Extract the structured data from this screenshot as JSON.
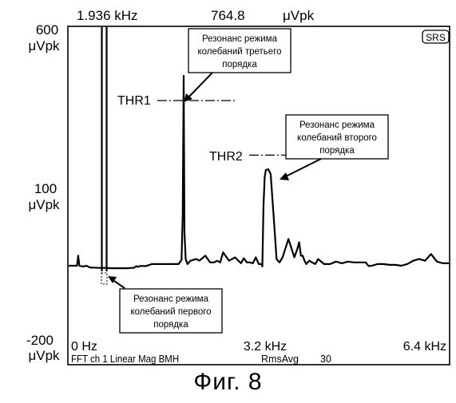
{
  "chart_data": {
    "type": "line",
    "header": {
      "marker_freq": "1.936 kHz",
      "marker_value": "764.8",
      "marker_unit": "μVpk",
      "badge": "SRS"
    },
    "y_tick_labels": [
      {
        "value": "600",
        "unit": "μVpk"
      },
      {
        "value": "100",
        "unit": "μVpk"
      },
      {
        "value": "-200",
        "unit": "μVpk"
      }
    ],
    "x_tick_labels": [
      "0 Hz",
      "3.2 kHz",
      "6.4 kHz"
    ],
    "footer": {
      "info": "FFT ch 1 Linear Mag BMH",
      "avg_label": "RmsAvg",
      "avg_count": "30"
    },
    "xlim_khz": [
      0,
      6.4
    ],
    "series": [
      {
        "x_khz": [
          0,
          0.1,
          0.14,
          0.16,
          0.18,
          0.25,
          0.3,
          0.36,
          0.42,
          0.5,
          0.6,
          0.72,
          0.8,
          0.9,
          1.0,
          1.05,
          1.1,
          1.12,
          1.14,
          1.16,
          1.2,
          1.3,
          1.4,
          1.55,
          1.7,
          1.85,
          1.9,
          1.92,
          1.936,
          1.95,
          1.97,
          2.0,
          2.05,
          2.15,
          2.2,
          2.3,
          2.38,
          2.45,
          2.5,
          2.55,
          2.6,
          2.7,
          2.8,
          2.9,
          2.95,
          3.0,
          3.05,
          3.1,
          3.15,
          3.2,
          3.25,
          3.26,
          3.28,
          3.3,
          3.32,
          3.36,
          3.4,
          3.45,
          3.5,
          3.55,
          3.6,
          3.7,
          3.8,
          3.85,
          3.88,
          3.91,
          3.94,
          3.97,
          4.0,
          4.05,
          4.1,
          4.15,
          4.2,
          4.3,
          4.4,
          4.5,
          4.6,
          4.7,
          4.8,
          4.9,
          5.0,
          5.05,
          5.1,
          5.2,
          5.3,
          5.4,
          5.5,
          5.6,
          5.7,
          5.8,
          5.9,
          6.0,
          6.1,
          6.2,
          6.3,
          6.4
        ],
        "y_uvpk": [
          0,
          0,
          0,
          12,
          0,
          -2,
          0,
          -5,
          -5,
          -6,
          -6,
          -7,
          -7,
          -7,
          -7,
          -6,
          -6,
          -3,
          -1,
          -3,
          -1,
          -1,
          2,
          2,
          2,
          2,
          7,
          60,
          764.8,
          40,
          8,
          2,
          6,
          8,
          6,
          12,
          4,
          4,
          6,
          4,
          16,
          6,
          10,
          3,
          9,
          4,
          4,
          3,
          10,
          2,
          2,
          -2,
          70,
          130,
          175,
          180,
          150,
          60,
          8,
          4,
          10,
          32,
          10,
          20,
          28,
          12,
          12,
          6,
          2,
          6,
          4,
          2,
          8,
          2,
          2,
          5,
          3,
          5,
          4,
          4,
          4,
          -1,
          0,
          2,
          2,
          1,
          1,
          0,
          2,
          6,
          8,
          6,
          14,
          5,
          3,
          3
        ]
      }
    ],
    "thresholds": [
      {
        "label": "THR1",
        "y_uvpk": 270
      },
      {
        "label": "THR2",
        "y_uvpk": 184
      }
    ],
    "annotations": [
      {
        "text": [
          "Резонанс режима",
          "колебаний третьего",
          "порядка"
        ]
      },
      {
        "text": [
          "Резонанс режима",
          "колебаний второго",
          "порядка"
        ]
      },
      {
        "text": [
          "Резонанс режима",
          "колебаний первого",
          "порядка"
        ]
      }
    ]
  },
  "figure_caption": "Фиг. 8",
  "colors": {
    "ink": "#000000",
    "paper": "#ffffff"
  }
}
